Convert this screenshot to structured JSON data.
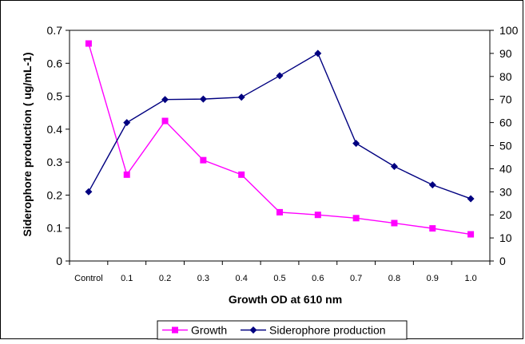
{
  "chart_data": {
    "type": "line",
    "title": "",
    "xlabel": "Growth OD at 610 nm",
    "ylabel": "Siderophore production ( ug/mL-1)",
    "categories": [
      "Control",
      "0.1",
      "0.2",
      "0.3",
      "0.4",
      "0.5",
      "0.6",
      "0.7",
      "0.8",
      "0.9",
      "1.0"
    ],
    "left_axis": {
      "min": 0,
      "max": 0.7,
      "ticks": [
        "0",
        "0.1",
        "0.2",
        "0.3",
        "0.4",
        "0.5",
        "0.6",
        "0.7"
      ]
    },
    "right_axis": {
      "min": 0,
      "max": 100,
      "ticks": [
        "0",
        "10",
        "20",
        "30",
        "40",
        "50",
        "60",
        "70",
        "80",
        "90",
        "100"
      ]
    },
    "grid": false,
    "legend_position": "bottom",
    "series": [
      {
        "name": "Growth",
        "axis": "left",
        "color": "#FF00FF",
        "marker": "square",
        "values": [
          0.66,
          0.262,
          0.425,
          0.306,
          0.262,
          0.148,
          0.14,
          0.13,
          0.115,
          0.099,
          0.081
        ]
      },
      {
        "name": "Siderophore production",
        "axis": "right",
        "color": "#000080",
        "marker": "diamond",
        "values": [
          30,
          60,
          70,
          70.2,
          71,
          80.3,
          90,
          51,
          41,
          33,
          27
        ]
      }
    ]
  }
}
